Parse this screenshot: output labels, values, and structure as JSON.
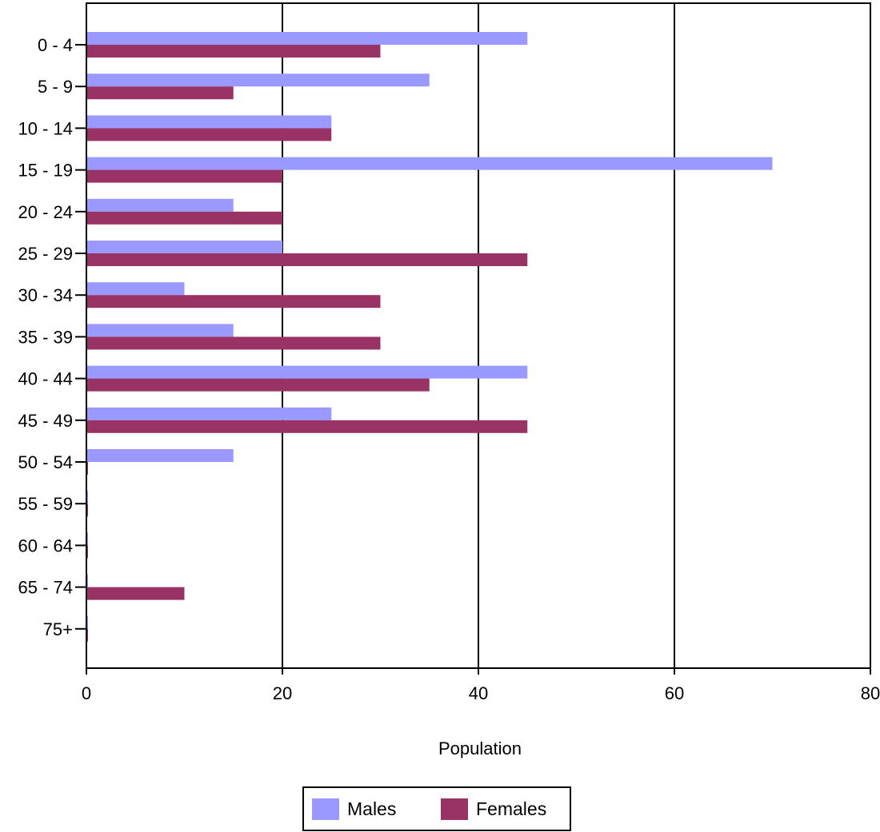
{
  "chart_data": {
    "type": "bar",
    "orientation": "horizontal",
    "categories": [
      "0 - 4",
      "5 - 9",
      "10 - 14",
      "15 - 19",
      "20 - 24",
      "25 - 29",
      "30 - 34",
      "35 - 39",
      "40 - 44",
      "45 - 49",
      "50 - 54",
      "55 - 59",
      "60 - 64",
      "65 - 74",
      "75+"
    ],
    "series": [
      {
        "name": "Males",
        "color": "#9999ff",
        "values": [
          45,
          35,
          25,
          70,
          15,
          20,
          10,
          15,
          45,
          25,
          15,
          0,
          0,
          0,
          0
        ]
      },
      {
        "name": "Females",
        "color": "#993366",
        "values": [
          30,
          15,
          25,
          20,
          20,
          45,
          30,
          30,
          35,
          45,
          0,
          0,
          0,
          10,
          0
        ]
      }
    ],
    "xlabel": "Population",
    "ylabel": "",
    "xlim": [
      0,
      80
    ],
    "xticks": [
      "0",
      "20",
      "40",
      "60",
      "80"
    ],
    "grid": "vertical",
    "legend_position": "bottom-center"
  }
}
